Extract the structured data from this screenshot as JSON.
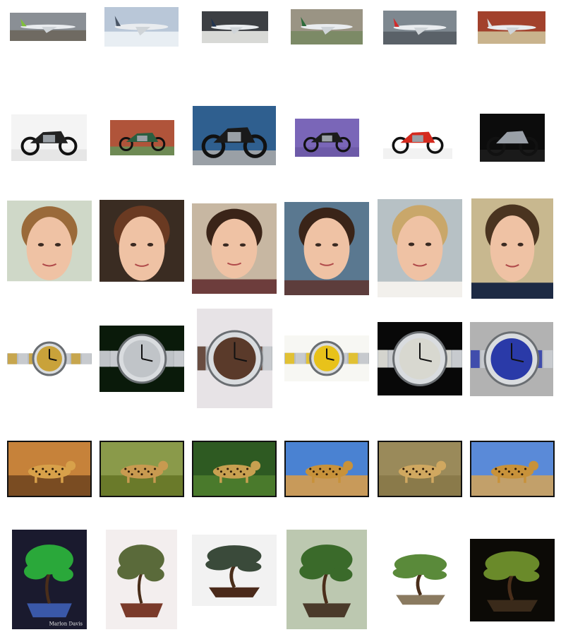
{
  "gallery": {
    "rows": [
      {
        "category": "airplanes",
        "items": [
          {
            "icon": "airplane-green-tail-icon",
            "bg": "#8a8f95",
            "ground": "#6f6a62",
            "accent": "#7fbf3a"
          },
          {
            "icon": "fighter-jet-icon",
            "bg": "#b9c7d8",
            "ground": "#e8eef3",
            "accent": "#4a5666"
          },
          {
            "icon": "airplane-airline-icon",
            "bg": "#3c3f43",
            "ground": "#d8d9d6",
            "accent": "#1f3350"
          },
          {
            "icon": "airplane-runway-icon",
            "bg": "#9a9484",
            "ground": "#7c8a66",
            "accent": "#2c6a3a"
          },
          {
            "icon": "airplane-swiss-icon",
            "bg": "#7e8890",
            "ground": "#5a6168",
            "accent": "#d22b2b"
          },
          {
            "icon": "propeller-plane-icon",
            "bg": "#a2412c",
            "ground": "#c9b38d",
            "accent": "#d9dde0"
          }
        ]
      },
      {
        "category": "motorbikes",
        "items": [
          {
            "icon": "cruiser-motorcycle-icon",
            "bg": "#f4f4f4",
            "ground": "#e6e6e6",
            "accent": "#222222"
          },
          {
            "icon": "vintage-motorcycle-icon",
            "bg": "#b0543a",
            "ground": "#6e8a54",
            "accent": "#2a5e40"
          },
          {
            "icon": "motorcycle-rider-sea-icon",
            "bg": "#2f5f8f",
            "ground": "#9aa0a6",
            "accent": "#1a1a1a"
          },
          {
            "icon": "chopper-motorcycle-icon",
            "bg": "#7a66b8",
            "ground": "#6d5aa8",
            "accent": "#1c1c1c"
          },
          {
            "icon": "sport-motorcycle-red-icon",
            "bg": "#ffffff",
            "ground": "#f2f2f2",
            "accent": "#d42a1e"
          },
          {
            "icon": "sport-motorcycle-dark-icon",
            "bg": "#0c0c0c",
            "ground": "#1a1a1a",
            "accent": "#9aa0a8"
          }
        ]
      },
      {
        "category": "faces",
        "items": [
          {
            "icon": "face-man-smiling-icon",
            "bg": "#cfd8c8",
            "ground": "#ffffff",
            "accent": "#9a6a3a"
          },
          {
            "icon": "face-woman-curly-hair-icon",
            "bg": "#3a2c22",
            "ground": "#ffffff",
            "accent": "#6a3a22"
          },
          {
            "icon": "face-woman-icon",
            "bg": "#c7b7a2",
            "ground": "#6d3d3c",
            "accent": "#3a2418"
          },
          {
            "icon": "face-woman-icon",
            "bg": "#5a7890",
            "ground": "#5d3d3c",
            "accent": "#3a2418"
          },
          {
            "icon": "face-woman-blonde-icon",
            "bg": "#b7c1c5",
            "ground": "#f2f0ec",
            "accent": "#c9a76a"
          },
          {
            "icon": "face-man-beard-icon",
            "bg": "#c8b88f",
            "ground": "#1d2a44",
            "accent": "#4a3420"
          }
        ]
      },
      {
        "category": "watches",
        "items": [
          {
            "icon": "gold-watch-icon",
            "bg": "#ffffff",
            "ground": "#ffffff",
            "accent": "#c9a23a"
          },
          {
            "icon": "chronograph-watch-icon",
            "bg": "#0a1a0a",
            "ground": "#0a1a0a",
            "accent": "#c0c4c8"
          },
          {
            "icon": "diver-watch-icon",
            "bg": "#e7e3e6",
            "ground": "#c5c2cc",
            "accent": "#5a3a2a"
          },
          {
            "icon": "yellow-dial-watch-icon",
            "bg": "#f7f7f3",
            "ground": "#f7f7f3",
            "accent": "#e8c21a"
          },
          {
            "icon": "square-watch-icon",
            "bg": "#080808",
            "ground": "#080808",
            "accent": "#d8d8d0"
          },
          {
            "icon": "blue-dial-watch-icon",
            "bg": "#b2b2b2",
            "ground": "#b2b2b2",
            "accent": "#2a3aa8"
          }
        ]
      },
      {
        "category": "leopards",
        "items": [
          {
            "icon": "leopard-rock-icon",
            "bg": "#c6823a",
            "ground": "#7a4c22",
            "accent": "#d8a14a"
          },
          {
            "icon": "leopard-grass-icon",
            "bg": "#8a9a4a",
            "ground": "#6a7a2a",
            "accent": "#c89a50"
          },
          {
            "icon": "leopard-jungle-icon",
            "bg": "#2e5a22",
            "ground": "#4a7a2c",
            "accent": "#c8a050"
          },
          {
            "icon": "leopard-sky-icon",
            "bg": "#4a82d2",
            "ground": "#c89a5a",
            "accent": "#c8923a"
          },
          {
            "icon": "cheetahs-grass-icon",
            "bg": "#9a8a5a",
            "ground": "#8a7a4a",
            "accent": "#d0a860"
          },
          {
            "icon": "cheetah-sitting-icon",
            "bg": "#5a8ad8",
            "ground": "#c2a06a",
            "accent": "#c8923a"
          }
        ]
      },
      {
        "category": "bonsai",
        "items": [
          {
            "icon": "bonsai-green-pot-icon",
            "bg": "#1a1a2e",
            "ground": "#3a58a8",
            "accent": "#2aa83a",
            "caption": "Marlon Davis"
          },
          {
            "icon": "bonsai-pine-icon",
            "bg": "#f3eeee",
            "ground": "#7a3a2a",
            "accent": "#5a6a3a"
          },
          {
            "icon": "bonsai-display-icon",
            "bg": "#f2f2f2",
            "ground": "#4a2a1a",
            "accent": "#3a4a3a"
          },
          {
            "icon": "bonsai-garden-icon",
            "bg": "#bcc8b0",
            "ground": "#4a3a2a",
            "accent": "#3a6a2a"
          },
          {
            "icon": "bonsai-round-icon",
            "bg": "#ffffff",
            "ground": "#8a7a60",
            "accent": "#5a8a3a"
          },
          {
            "icon": "bonsai-dark-icon",
            "bg": "#0c0a06",
            "ground": "#3a2a1a",
            "accent": "#6a8a2a"
          }
        ]
      }
    ]
  }
}
